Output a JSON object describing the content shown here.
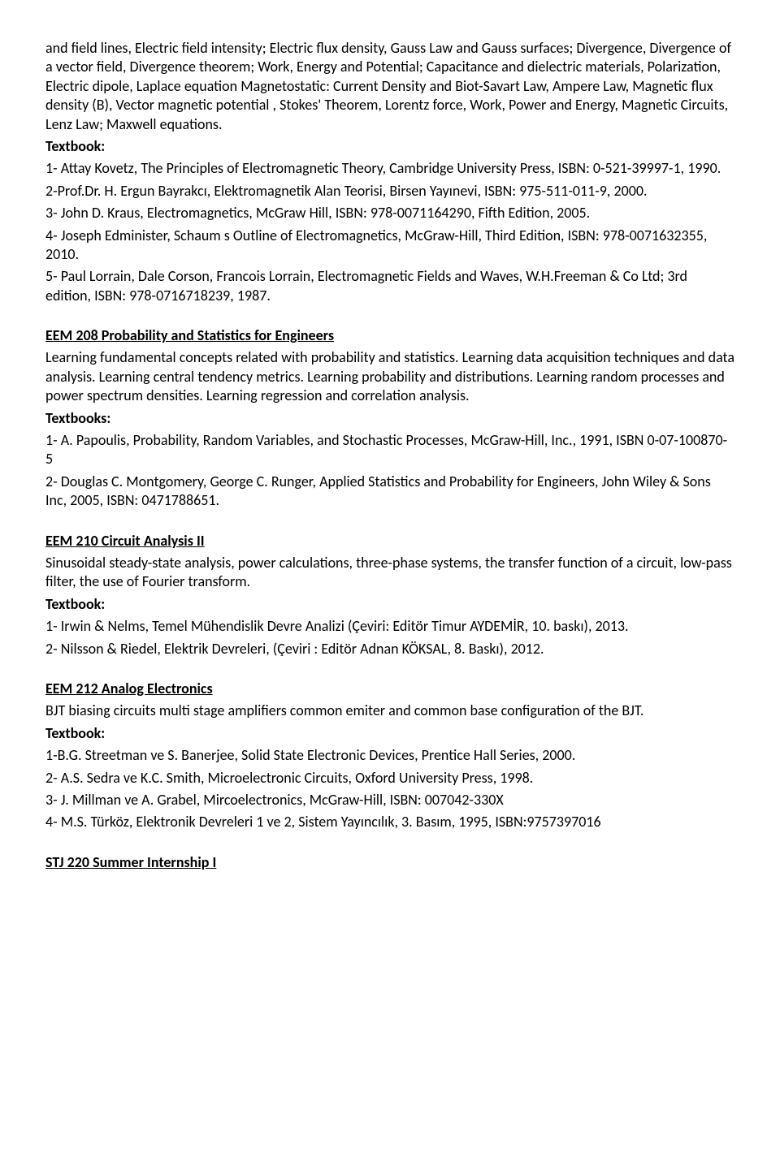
{
  "course1": {
    "desc_part": "and field lines, Electric field intensity; Electric flux density, Gauss Law and Gauss surfaces; Divergence, Divergence of a vector field, Divergence theorem; Work, Energy and Potential; Capacitance and dielectric materials, Polarization, Electric dipole, Laplace equation Magnetostatic: Current Density and Biot-Savart Law, Ampere Law, Magnetic flux density (B), Vector magnetic potential , Stokes' Theorem, Lorentz force, Work, Power and Energy, Magnetic Circuits, Lenz Law; Maxwell equations.",
    "textbook_label": "Textbook:",
    "tb1": "1- Attay Kovetz, The Principles of Electromagnetic Theory, Cambridge University Press, ISBN: 0-521-39997-1, 1990.",
    "tb2": "2-Prof.Dr. H. Ergun Bayrakcı, Elektromagnetik Alan Teorisi, Birsen Yayınevi, ISBN: 975-511-011-9, 2000.",
    "tb3": "3- John D. Kraus, Electromagnetics, McGraw Hill, ISBN: 978-0071164290, Fifth Edition, 2005.",
    "tb4": "4- Joseph Edminister, Schaum s Outline of Electromagnetics, McGraw-Hill, Third Edition, ISBN: 978-0071632355, 2010.",
    "tb5": "5- Paul Lorrain, Dale Corson, Francois Lorrain, Electromagnetic Fields and Waves, W.H.Freeman & Co Ltd; 3rd edition, ISBN: 978-0716718239, 1987."
  },
  "course2": {
    "title": "EEM 208 Probability and Statistics for Engineers",
    "desc": " Learning fundamental concepts related with probability and statistics. Learning data acquisition techniques and data analysis. Learning central tendency metrics. Learning probability and distributions. Learning random processes and power spectrum densities. Learning regression and correlation analysis.",
    "textbook_label": "Textbooks:",
    "tb1": "1- A. Papoulis, Probability, Random Variables, and Stochastic Processes, McGraw-Hill, Inc., 1991, ISBN 0-07-100870-5",
    "tb2": "2- Douglas C. Montgomery, George C. Runger, Applied Statistics and Probability for Engineers, John Wiley & Sons Inc, 2005, ISBN: 0471788651."
  },
  "course3": {
    "title": "EEM 210 Circuit Analysis II",
    "desc": "Sinusoidal steady-state analysis, power calculations, three-phase systems, the transfer function of a circuit, low-pass filter, the use of Fourier transform.",
    "textbook_label": "Textbook:",
    "tb1": "1- Irwin & Nelms, Temel Mühendislik Devre Analizi (Çeviri: Editör Timur AYDEMİR, 10. baskı), 2013.",
    "tb2": "2- Nilsson & Riedel, Elektrik Devreleri, (Çeviri : Editör Adnan KÖKSAL, 8. Baskı), 2012."
  },
  "course4": {
    "title": "EEM 212 Analog Electronics",
    "desc": "BJT biasing circuits multi stage amplifiers common emiter and common base configuration of the BJT.",
    "textbook_label": "Textbook:",
    "tb1": "1-B.G. Streetman ve S. Banerjee, Solid State Electronic Devices, Prentice Hall Series, 2000.",
    "tb2": "2- A.S. Sedra ve K.C. Smith, Microelectronic Circuits, Oxford University Press, 1998.",
    "tb3": "3- J. Millman ve A. Grabel, Mircoelectronics, McGraw-Hill, ISBN: 007042-330X",
    "tb4": "4- M.S. Türköz, Elektronik Devreleri 1 ve 2, Sistem Yayıncılık, 3. Basım, 1995, ISBN:9757397016"
  },
  "course5": {
    "title": "STJ 220 Summer Internship I"
  }
}
